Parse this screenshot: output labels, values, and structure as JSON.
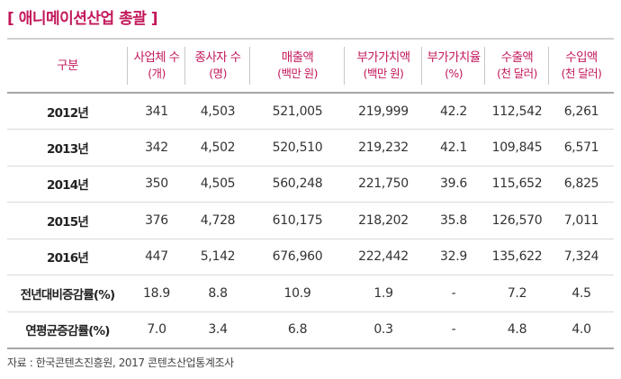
{
  "title": "[ 애니메이션산업 총괄 ]",
  "columns": [
    {
      "label": "구분",
      "unit": ""
    },
    {
      "label": "사업체 수",
      "unit": "(개)"
    },
    {
      "label": "종사자 수",
      "unit": "(명)"
    },
    {
      "label": "매출액",
      "unit": "(백만 원)"
    },
    {
      "label": "부가가치액",
      "unit": "(백만 원)"
    },
    {
      "label": "부가가치율",
      "unit": "(%)"
    },
    {
      "label": "수출액",
      "unit": "(천 달러)"
    },
    {
      "label": "수입액",
      "unit": "(천 달러)"
    }
  ],
  "rows": [
    [
      "2012년",
      "341",
      "4,503",
      "521,005",
      "219,999",
      "42.2",
      "112,542",
      "6,261"
    ],
    [
      "2013년",
      "342",
      "4,502",
      "520,510",
      "219,232",
      "42.1",
      "109,845",
      "6,571"
    ],
    [
      "2014년",
      "350",
      "4,505",
      "560,248",
      "221,750",
      "39.6",
      "115,652",
      "6,825"
    ],
    [
      "2015년",
      "376",
      "4,728",
      "610,175",
      "218,202",
      "35.8",
      "126,570",
      "7,011"
    ],
    [
      "2016년",
      "447",
      "5,142",
      "676,960",
      "222,442",
      "32.9",
      "135,622",
      "7,324"
    ],
    [
      "전년대비증감률(%)",
      "18.9",
      "8.8",
      "10.9",
      "1.9",
      "-",
      "7.2",
      "4.5"
    ],
    [
      "연평균증감률(%)",
      "7.0",
      "3.4",
      "6.8",
      "0.3",
      "-",
      "4.8",
      "4.0"
    ]
  ],
  "source": "자료 : 한국콘텐츠진흥원, 2017 콘텐츠산업통계조사"
}
